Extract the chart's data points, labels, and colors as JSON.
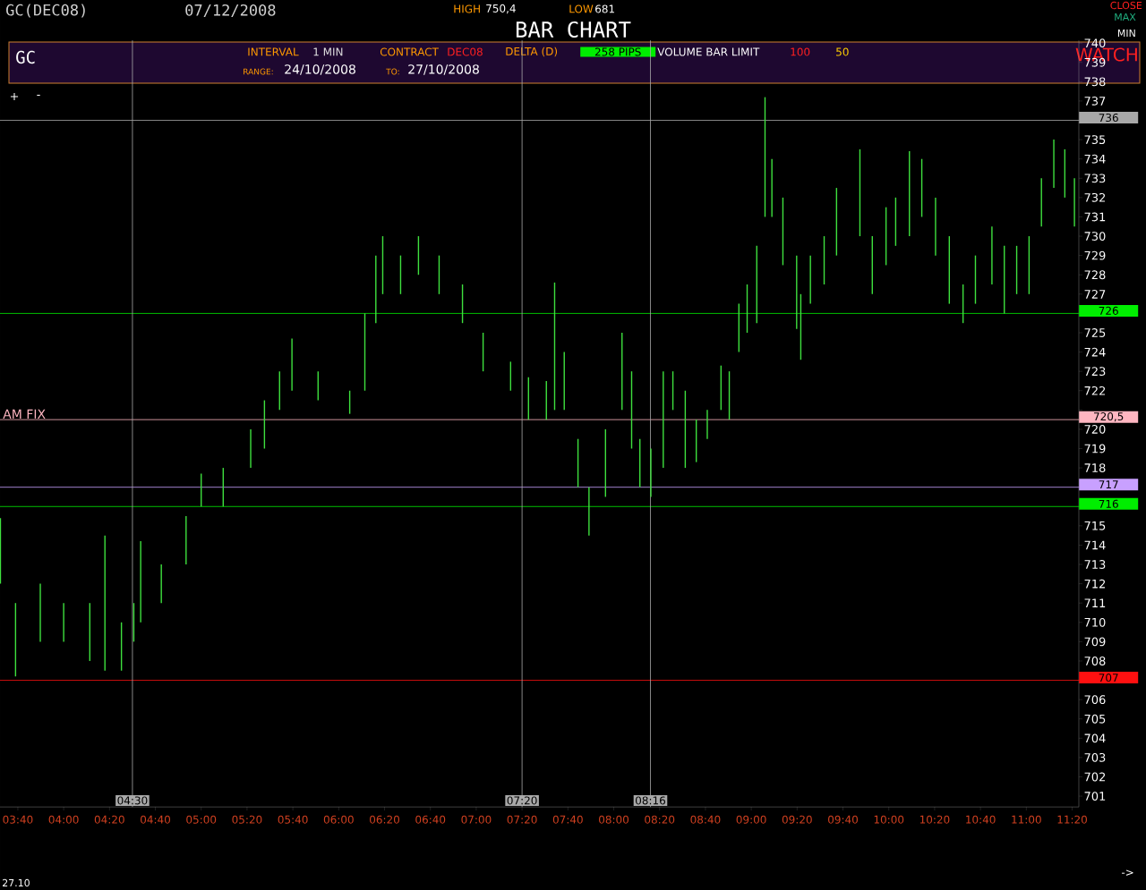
{
  "chart_data": {
    "type": "bar",
    "title": "BAR CHART",
    "annotations": [
      "GC(DEC08)",
      "07/12/2008",
      "HIGH",
      "750,4",
      "LOW",
      "681",
      "CLOSE",
      "MAX",
      "MIN",
      "GC",
      "INTERVAL",
      "1 MIN",
      "CONTRACT",
      "DEC08",
      "DELTA (D)",
      "258 PIPS",
      "VOLUME BAR LIMIT",
      "100",
      "50",
      "WATCH",
      "RANGE:",
      "24/10/2008",
      "TO:",
      "27/10/2008",
      "+",
      "-",
      "27.10",
      "->",
      {
        "text": "AM FIX",
        "x": 3.55,
        "y": 720.5
      }
    ],
    "x": [
      3.54,
      3.65,
      3.83,
      4.0,
      4.19,
      4.3,
      4.42,
      4.51,
      4.56,
      4.71,
      4.89,
      5.0,
      5.16,
      5.36,
      5.46,
      5.57,
      5.66,
      5.85,
      6.08,
      6.19,
      6.27,
      6.32,
      6.45,
      6.58,
      6.73,
      6.9,
      7.05,
      7.25,
      7.38,
      7.51,
      7.57,
      7.64,
      7.74,
      7.82,
      7.94,
      8.06,
      8.13,
      8.19,
      8.27,
      8.36,
      8.43,
      8.52,
      8.6,
      8.68,
      8.78,
      8.84,
      8.91,
      8.97,
      9.04,
      9.1,
      9.15,
      9.23,
      9.33,
      9.36,
      9.43,
      9.53,
      9.62,
      9.79,
      9.88,
      9.98,
      10.05,
      10.15,
      10.24,
      10.34,
      10.44,
      10.54,
      10.63,
      10.75,
      10.84,
      10.93,
      11.02,
      11.11,
      11.2,
      11.28,
      11.35
    ],
    "base": [
      712,
      707.2,
      709,
      709,
      708,
      707.5,
      707.5,
      709,
      710,
      711,
      713,
      716,
      716,
      718,
      719,
      721,
      722,
      721.5,
      720.8,
      722,
      725.5,
      727,
      727,
      728,
      727,
      725.5,
      723,
      722,
      720.5,
      720.5,
      721,
      721,
      717,
      714.5,
      716.5,
      721,
      719,
      717,
      716.5,
      718,
      721,
      718,
      718.3,
      719.5,
      721,
      720.5,
      724,
      725,
      725.5,
      731,
      731,
      728.5,
      725.2,
      723.6,
      726.5,
      727.5,
      729,
      730,
      727,
      728.5,
      729.5,
      730,
      731,
      729,
      726.5,
      725.5,
      726.5,
      727.5,
      726,
      727,
      727,
      730.5,
      732.5,
      732,
      730.5
    ],
    "values": [
      3.4,
      3.8,
      3,
      2,
      3,
      7,
      2.5,
      2,
      4.2,
      2,
      2.5,
      1.7,
      2,
      2,
      2.5,
      2,
      2.7,
      1.5,
      1.2,
      4,
      3.5,
      3,
      2,
      2,
      2,
      2,
      2,
      1.5,
      2.2,
      2,
      6.6,
      3,
      2.5,
      2.5,
      3.5,
      4,
      4,
      2.5,
      2.5,
      5,
      2,
      4,
      2.2,
      1.5,
      2.3,
      2.5,
      2.5,
      2.5,
      4,
      6.2,
      3,
      3.5,
      3.8,
      3.4,
      2.5,
      2.5,
      3.5,
      4.5,
      3,
      3,
      2.5,
      4.4,
      3,
      3,
      3.5,
      2,
      2.5,
      3,
      3.5,
      2.5,
      3,
      2.5,
      2.5,
      2.5,
      2.5
    ],
    "color": "#3ee03e",
    "xlim": [
      3.537,
      11.382
    ],
    "ylim": [
      700.44,
      740.14
    ],
    "xticks": [
      {
        "value": 3.6667,
        "label": "03:40"
      },
      {
        "value": 4,
        "label": "04:00"
      },
      {
        "value": 4.3333,
        "label": "04:20"
      },
      {
        "value": 4.6667,
        "label": "04:40"
      },
      {
        "value": 5,
        "label": "05:00"
      },
      {
        "value": 5.3333,
        "label": "05:20"
      },
      {
        "value": 5.6667,
        "label": "05:40"
      },
      {
        "value": 6,
        "label": "06:00"
      },
      {
        "value": 6.3333,
        "label": "06:20"
      },
      {
        "value": 6.6667,
        "label": "06:40"
      },
      {
        "value": 7,
        "label": "07:00"
      },
      {
        "value": 7.3333,
        "label": "07:20"
      },
      {
        "value": 7.6667,
        "label": "07:40"
      },
      {
        "value": 8,
        "label": "08:00"
      },
      {
        "value": 8.3333,
        "label": "08:20"
      },
      {
        "value": 8.6667,
        "label": "08:40"
      },
      {
        "value": 9,
        "label": "09:00"
      },
      {
        "value": 9.3333,
        "label": "09:20"
      },
      {
        "value": 9.6667,
        "label": "09:40"
      },
      {
        "value": 10,
        "label": "10:00"
      },
      {
        "value": 10.3333,
        "label": "10:20"
      },
      {
        "value": 10.6667,
        "label": "10:40"
      },
      {
        "value": 11,
        "label": "11:00"
      },
      {
        "value": 11.3333,
        "label": "11:20"
      }
    ],
    "yticks": [
      701,
      702,
      703,
      704,
      705,
      706,
      {
        "value": 707,
        "label": null
      },
      708,
      709,
      710,
      711,
      712,
      713,
      714,
      715,
      {
        "value": 716,
        "label": null
      },
      {
        "value": 717,
        "label": null
      },
      718,
      719,
      720,
      {
        "value": 721,
        "label": null
      },
      722,
      723,
      724,
      725,
      {
        "value": 726,
        "label": null
      },
      727,
      728,
      729,
      730,
      731,
      732,
      733,
      734,
      735,
      {
        "value": 736,
        "label": null
      },
      737,
      738,
      739,
      740
    ],
    "ref_lines": [
      {
        "axis": "y",
        "value": 736,
        "label": "736",
        "color": "#a8a8a8"
      },
      {
        "axis": "y",
        "value": 726,
        "label": "726",
        "color": "#00ee00"
      },
      {
        "axis": "y",
        "value": 720.5,
        "label": "720,5",
        "color": "#ffb6c1"
      },
      {
        "axis": "y",
        "value": 717,
        "label": "717",
        "color": "#c8a0ff"
      },
      {
        "axis": "y",
        "value": 716,
        "label": "716",
        "color": "#00ee00"
      },
      {
        "axis": "y",
        "value": 707,
        "label": "707",
        "color": "#ff1010"
      },
      {
        "axis": "x",
        "value": 4.5,
        "label": "04:30",
        "color": "#a8a8a8"
      },
      {
        "axis": "x",
        "value": 7.3333,
        "label": "07:20",
        "color": "#a8a8a8"
      },
      {
        "axis": "x",
        "value": 8.2667,
        "label": "08:16",
        "color": "#a8a8a8"
      }
    ]
  }
}
